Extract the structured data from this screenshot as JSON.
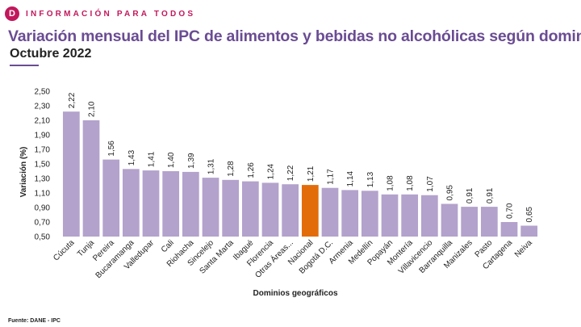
{
  "header": {
    "logo_letter": "D",
    "tagline": "INFORMACIÓN PARA TODOS",
    "title": "Variación mensual del IPC de alimentos y bebidas no alcohólicas según dominio",
    "subtitle": "Octubre 2022"
  },
  "footer": {
    "source": "Fuente: DANE - IPC"
  },
  "colors": {
    "brand": "#c2185b",
    "title": "#6a4c93",
    "bar": "#b3a2cc",
    "highlight": "#e36c0a"
  },
  "chart_data": {
    "type": "bar",
    "xlabel": "Dominios geográficos",
    "ylabel": "Variación (%)",
    "ylim": [
      0.5,
      2.5
    ],
    "yticks": [
      "0,50",
      "0,70",
      "0,90",
      "1,10",
      "1,30",
      "1,50",
      "1,70",
      "1,90",
      "2,10",
      "2,30",
      "2,50"
    ],
    "categories": [
      "Cúcuta",
      "Tunja",
      "Pereira",
      "Bucaramanga",
      "Valledupar",
      "Cali",
      "Riohacha",
      "Sincelejo",
      "Santa Marta",
      "Ibagué",
      "Florencia",
      "Otras Áreas...",
      "Nacional",
      "Bogotá D.C.",
      "Armenia",
      "Medellín",
      "Popayán",
      "Montería",
      "Villavicencio",
      "Barranquilla",
      "Manizales",
      "Pasto",
      "Cartagena",
      "Neiva"
    ],
    "values": [
      2.22,
      2.1,
      1.56,
      1.43,
      1.41,
      1.4,
      1.39,
      1.31,
      1.28,
      1.26,
      1.24,
      1.22,
      1.21,
      1.17,
      1.14,
      1.13,
      1.08,
      1.08,
      1.07,
      0.95,
      0.91,
      0.91,
      0.7,
      0.65
    ],
    "value_labels": [
      "2,22",
      "2,10",
      "1,56",
      "1,43",
      "1,41",
      "1,40",
      "1,39",
      "1,31",
      "1,28",
      "1,26",
      "1,24",
      "1,22",
      "1,21",
      "1,17",
      "1,14",
      "1,13",
      "1,08",
      "1,08",
      "1,07",
      "0,95",
      "0,91",
      "0,91",
      "0,70",
      "0,65"
    ],
    "highlight": "Nacional",
    "grid": false
  }
}
